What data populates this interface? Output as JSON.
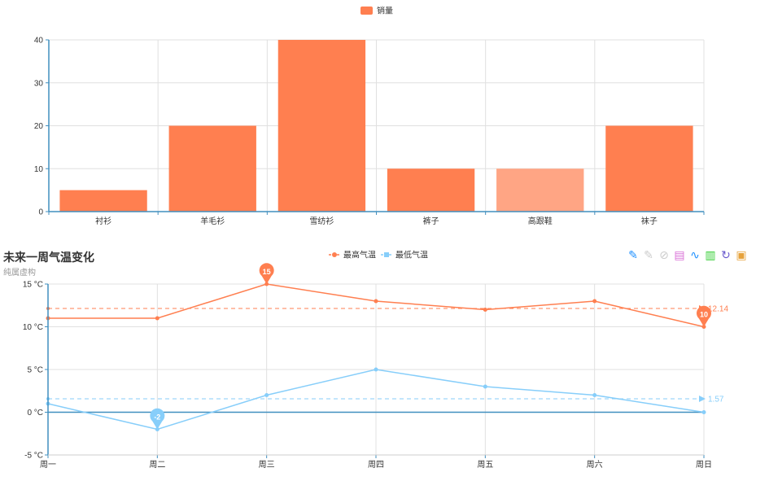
{
  "bar_chart": {
    "legend_label": "销量",
    "bar_color": "#ff7f50",
    "highlight_color": "#ffa584",
    "axis_color": "#408fbf"
  },
  "line_chart": {
    "title": "未来一周气温变化",
    "subtitle": "纯属虚构",
    "max_color": "#ff7f50",
    "min_color": "#87cefa",
    "axis_color": "#408fbf",
    "toolbox": [
      {
        "name": "mark-icon",
        "glyph": "✎",
        "color": "#1e90ff"
      },
      {
        "name": "mark-undo-icon",
        "glyph": "✎",
        "color": "#cccccc"
      },
      {
        "name": "mark-clear-icon",
        "glyph": "⊘",
        "color": "#cccccc"
      },
      {
        "name": "data-view-icon",
        "glyph": "▤",
        "color": "#da70d6"
      },
      {
        "name": "line-chart-icon",
        "glyph": "∿",
        "color": "#1e90ff"
      },
      {
        "name": "bar-chart-icon",
        "glyph": "▥",
        "color": "#32cd32"
      },
      {
        "name": "restore-icon",
        "glyph": "↻",
        "color": "#6a5acd"
      },
      {
        "name": "save-image-icon",
        "glyph": "▣",
        "color": "#e6a23c"
      }
    ]
  },
  "chart_data": [
    {
      "type": "bar",
      "categories": [
        "衬衫",
        "羊毛衫",
        "雪纺衫",
        "裤子",
        "高跟鞋",
        "袜子"
      ],
      "series": [
        {
          "name": "销量",
          "values": [
            5,
            20,
            40,
            10,
            10,
            20
          ]
        }
      ],
      "ylim": [
        0,
        40
      ],
      "yticks": [
        0,
        10,
        20,
        30,
        40
      ],
      "grid": true,
      "legend": "top-center"
    },
    {
      "type": "line",
      "title": "未来一周气温变化",
      "subtitle": "纯属虚构",
      "categories": [
        "周一",
        "周二",
        "周三",
        "周四",
        "周五",
        "周六",
        "周日"
      ],
      "series": [
        {
          "name": "最高气温",
          "values": [
            11,
            11,
            15,
            13,
            12,
            13,
            10
          ],
          "max_label": "15",
          "min_label": "10",
          "average_label": "12.14"
        },
        {
          "name": "最低气温",
          "values": [
            1,
            -2,
            2,
            5,
            3,
            2,
            0
          ],
          "min_label": "-2",
          "average_label": "1.57"
        }
      ],
      "ylim": [
        -5,
        15
      ],
      "yticks": [
        -5,
        0,
        5,
        10,
        15
      ],
      "ytick_labels": [
        "-5 °C",
        "0 °C",
        "5 °C",
        "10 °C",
        "15 °C"
      ],
      "grid": true,
      "legend": "top-center"
    }
  ]
}
